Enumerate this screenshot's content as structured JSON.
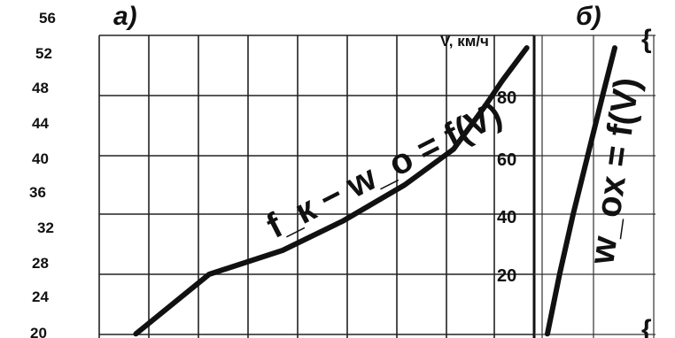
{
  "chart_data": [
    {
      "panel_label": "а)",
      "type": "line",
      "y_tick_labels": [
        "56",
        "52",
        "48",
        "44",
        "40",
        "36",
        "32",
        "28",
        "24",
        "20"
      ],
      "v_axis_title": "V, км/ч",
      "v_tick_labels": [
        "80",
        "60",
        "40",
        "20"
      ],
      "curve_label": "f_к − w_о = f(V)",
      "series": [
        {
          "name": "f_к − w_о = f(V)",
          "points": [
            {
              "x": 21,
              "v": 0
            },
            {
              "x": 27,
              "v": 20
            },
            {
              "x": 33,
              "v": 28
            },
            {
              "x": 38,
              "v": 38
            },
            {
              "x": 43,
              "v": 50
            },
            {
              "x": 47,
              "v": 62
            },
            {
              "x": 49.5,
              "v": 76
            },
            {
              "x": 51,
              "v": 85
            },
            {
              "x": 53,
              "v": 96
            }
          ]
        }
      ],
      "xlim": [
        0,
        56
      ],
      "ylim": [
        0,
        100
      ],
      "grid": true
    },
    {
      "panel_label": "б)",
      "type": "line",
      "curve_label": "w_ox = f(V)",
      "series": [
        {
          "name": "w_ox = f(V)",
          "points": [
            {
              "x": 0.0,
              "v": 0
            },
            {
              "x": 0.18,
              "v": 20
            },
            {
              "x": 0.38,
              "v": 40
            },
            {
              "x": 0.6,
              "v": 60
            },
            {
              "x": 0.82,
              "v": 80
            },
            {
              "x": 1.0,
              "v": 96
            }
          ]
        }
      ],
      "ylim": [
        0,
        100
      ],
      "grid": true
    }
  ]
}
